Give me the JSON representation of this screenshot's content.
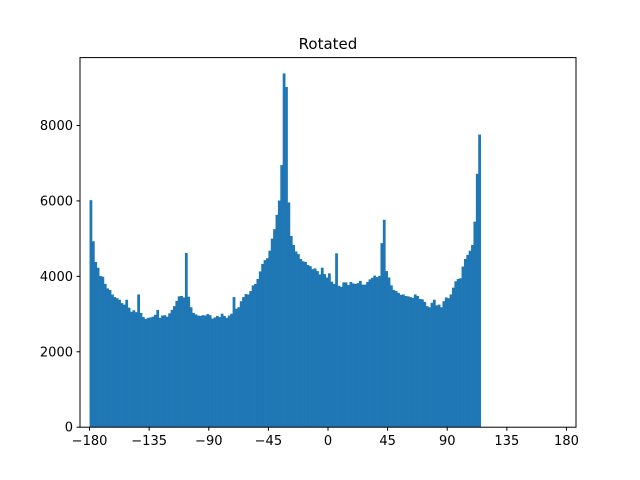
{
  "chart_data": {
    "type": "bar",
    "title": "Rotated",
    "xlabel": "",
    "ylabel": "",
    "xlim": [
      -187.2,
      187.2
    ],
    "ylim": [
      0,
      9800
    ],
    "grid": false,
    "legend": "none",
    "bar_color": "#1f77b4",
    "bin_width": 1.8,
    "bin_start": -180,
    "x_ticks": [
      -180,
      -135,
      -90,
      -45,
      0,
      45,
      90,
      135,
      180
    ],
    "x_tick_labels": [
      "−180",
      "−135",
      "−90",
      "−45",
      "0",
      "45",
      "90",
      "135",
      "180"
    ],
    "y_ticks": [
      0,
      2000,
      4000,
      6000,
      8000
    ],
    "y_tick_labels": [
      "0",
      "2000",
      "4000",
      "6000",
      "8000"
    ],
    "values": [
      6020,
      4930,
      4380,
      4230,
      4010,
      3990,
      3800,
      3680,
      3640,
      3520,
      3450,
      3420,
      3380,
      3290,
      3250,
      3380,
      3170,
      3060,
      3100,
      3050,
      3520,
      3030,
      2920,
      2870,
      2900,
      2910,
      2930,
      2980,
      3110,
      2900,
      2960,
      2970,
      2930,
      3020,
      3110,
      3210,
      3350,
      3470,
      3480,
      3440,
      4620,
      3460,
      3180,
      3030,
      2990,
      2960,
      2950,
      2970,
      2960,
      3000,
      2970,
      2880,
      2910,
      2950,
      2920,
      3010,
      2950,
      2900,
      2960,
      3010,
      3450,
      3140,
      3180,
      3340,
      3450,
      3530,
      3520,
      3610,
      3760,
      3800,
      3930,
      4130,
      4330,
      4430,
      4480,
      4680,
      5000,
      5250,
      5630,
      6010,
      6950,
      9380,
      9020,
      5960,
      5070,
      4830,
      4660,
      4590,
      4460,
      4400,
      4380,
      4300,
      4270,
      4190,
      4210,
      4140,
      4050,
      4230,
      4060,
      3970,
      4080,
      3860,
      3800,
      4610,
      3750,
      3720,
      3840,
      3840,
      3770,
      3850,
      3810,
      3800,
      3820,
      3880,
      3780,
      3780,
      3850,
      3920,
      3960,
      4020,
      3980,
      4010,
      4880,
      5500,
      4140,
      3970,
      3760,
      3640,
      3610,
      3560,
      3510,
      3520,
      3480,
      3470,
      3450,
      3430,
      3520,
      3480,
      3400,
      3390,
      3320,
      3210,
      3180,
      3300,
      3380,
      3230,
      3250,
      3180,
      3340,
      3440,
      3420,
      3520,
      3700,
      3870,
      3930,
      3950,
      4260,
      4460,
      4570,
      4680,
      4830,
      5450,
      6720,
      7760
    ]
  }
}
